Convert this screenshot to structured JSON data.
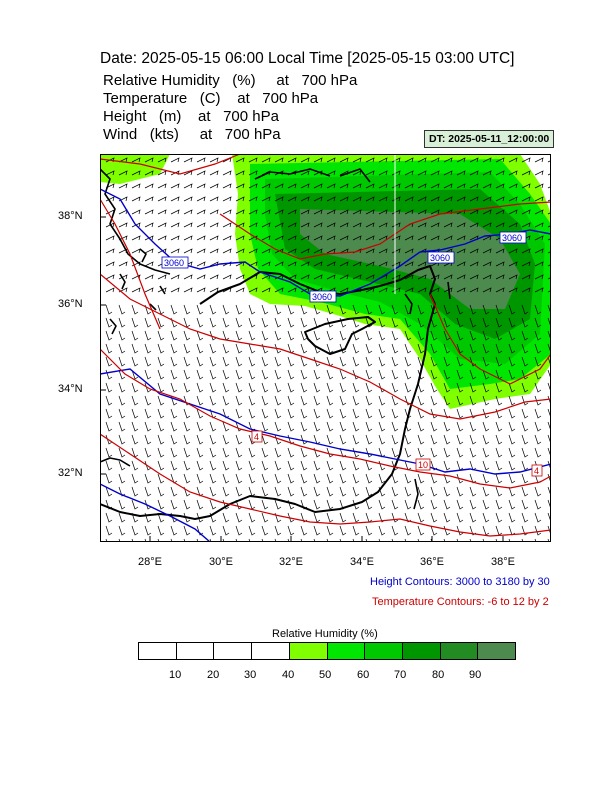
{
  "title": "Date: 2025-05-15  06:00 Local Time [2025-05-15  03:00 UTC]",
  "header_lines": [
    {
      "name": "Relative Humidity",
      "unit": "(%)",
      "at": "at",
      "level": "700 hPa"
    },
    {
      "name": "Temperature",
      "unit": "(C)",
      "at": "at",
      "level": "700 hPa"
    },
    {
      "name": "Height",
      "unit": "(m)",
      "at": "at",
      "level": "700 hPa"
    },
    {
      "name": "Wind",
      "unit": "(kts)",
      "at": "at",
      "level": "700 hPa"
    }
  ],
  "dt_label": "DT: 2025-05-11_12:00:00",
  "lat_labels": [
    "38°N",
    "36°N",
    "34°N",
    "32°N"
  ],
  "lon_labels": [
    "28°E",
    "30°E",
    "32°E",
    "34°E",
    "36°E",
    "38°E"
  ],
  "map_range": {
    "lon": [
      26.7,
      39.3
    ],
    "lat": [
      30.6,
      39.6
    ]
  },
  "height_contour_labels": [
    "3060",
    "3060",
    "3060",
    "3060"
  ],
  "temperature_contour_labels": [
    "4",
    "10",
    "4"
  ],
  "height_contours_text": "Height Contours: 3000 to 3180 by 30",
  "temperature_contours_text": "Temperature Contours: -6 to 12 by 2",
  "legend": {
    "title": "Relative Humidity  (%)",
    "ticks": [
      "10",
      "20",
      "30",
      "40",
      "50",
      "60",
      "70",
      "80",
      "90"
    ],
    "colors": [
      "#ffffff",
      "#ffffff",
      "#ffffff",
      "#ffffff",
      "#80ff00",
      "#00e600",
      "#00c800",
      "#009600",
      "#228b22",
      "#4d8a4d"
    ]
  },
  "colors": {
    "height_contour": "#0000cc",
    "temperature_contour": "#cc0000",
    "coastline": "#000000"
  }
}
